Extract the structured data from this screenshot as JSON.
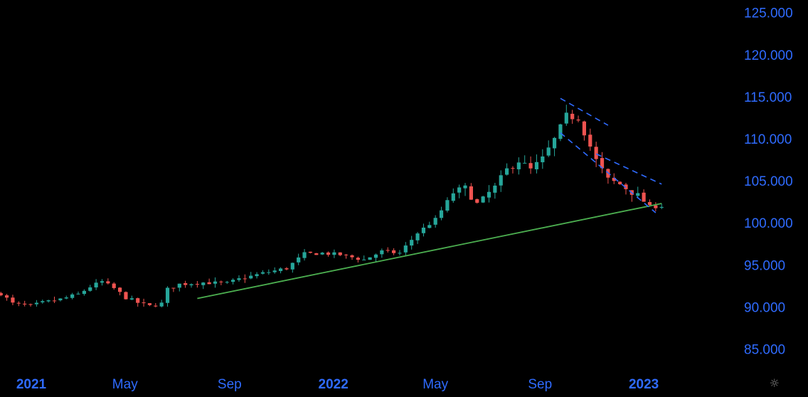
{
  "chart_data": {
    "type": "candlestick",
    "interval": "weekly",
    "colors": {
      "up": "#26a69a",
      "down": "#ef5350",
      "axis_text": "#2f6bff",
      "trend_support": "#4caf50",
      "channel": "#2f6bff"
    },
    "ylim": [
      82.5,
      126.5
    ],
    "y_ticks": [
      "85.000",
      "90.000",
      "95.000",
      "100.000",
      "105.000",
      "110.000",
      "115.000",
      "120.000",
      "125.000"
    ],
    "x_ticks": [
      {
        "label": "2021",
        "date": "2021-01-01",
        "major": true
      },
      {
        "label": "May",
        "date": "2021-05-01",
        "major": false
      },
      {
        "label": "Sep",
        "date": "2021-09-01",
        "major": false
      },
      {
        "label": "2022",
        "date": "2022-01-01",
        "major": true
      },
      {
        "label": "May",
        "date": "2022-05-01",
        "major": false
      },
      {
        "label": "Sep",
        "date": "2022-09-01",
        "major": false
      },
      {
        "label": "2023",
        "date": "2023-01-01",
        "major": true
      }
    ],
    "close_path": [
      [
        "2020-12-06",
        91.6
      ],
      [
        "2020-12-20",
        90.4
      ],
      [
        "2021-01-10",
        90.1
      ],
      [
        "2021-01-24",
        90.5
      ],
      [
        "2021-02-14",
        90.9
      ],
      [
        "2021-03-07",
        91.5
      ],
      [
        "2021-03-21",
        92.4
      ],
      [
        "2021-04-04",
        93.0
      ],
      [
        "2021-04-18",
        92.2
      ],
      [
        "2021-05-02",
        91.1
      ],
      [
        "2021-05-16",
        90.5
      ],
      [
        "2021-05-30",
        90.1
      ],
      [
        "2021-06-13",
        90.4
      ],
      [
        "2021-06-20",
        92.1
      ],
      [
        "2021-07-04",
        92.7
      ],
      [
        "2021-08-01",
        92.9
      ],
      [
        "2021-08-29",
        92.8
      ],
      [
        "2021-09-12",
        93.3
      ],
      [
        "2021-10-10",
        94.0
      ],
      [
        "2021-11-07",
        94.6
      ],
      [
        "2021-11-28",
        96.3
      ],
      [
        "2021-12-19",
        96.4
      ],
      [
        "2022-01-09",
        96.2
      ],
      [
        "2022-02-06",
        95.6
      ],
      [
        "2022-02-27",
        96.6
      ],
      [
        "2022-03-20",
        96.4
      ],
      [
        "2022-04-10",
        98.8
      ],
      [
        "2022-05-01",
        100.4
      ],
      [
        "2022-05-22",
        103.6
      ],
      [
        "2022-06-05",
        104.1
      ],
      [
        "2022-06-19",
        102.3
      ],
      [
        "2022-07-10",
        104.2
      ],
      [
        "2022-07-24",
        106.3
      ],
      [
        "2022-08-07",
        107.4
      ],
      [
        "2022-08-21",
        106.3
      ],
      [
        "2022-09-04",
        107.6
      ],
      [
        "2022-09-18",
        109.9
      ],
      [
        "2022-10-02",
        112.7
      ],
      [
        "2022-10-16",
        112.5
      ],
      [
        "2022-11-06",
        107.4
      ],
      [
        "2022-11-20",
        105.1
      ],
      [
        "2022-12-04",
        104.6
      ],
      [
        "2022-12-25",
        103.2
      ],
      [
        "2023-01-08",
        101.9
      ],
      [
        "2023-01-22",
        102.0
      ]
    ],
    "annotations": {
      "support_line": {
        "from": [
          "2021-07-25",
          91.0
        ],
        "to": [
          "2023-01-22",
          102.3
        ]
      },
      "channel_upper": {
        "from": [
          "2022-09-25",
          114.8
        ],
        "to": [
          "2022-11-20",
          111.6
        ]
      },
      "channel_upper2": {
        "from": [
          "2022-11-06",
          108.2
        ],
        "to": [
          "2023-01-22",
          104.6
        ]
      },
      "channel_lower": {
        "from": [
          "2022-09-25",
          110.7
        ],
        "to": [
          "2023-01-15",
          101.2
        ]
      }
    }
  },
  "settings_icon": "sun-gear-icon",
  "settings_glyph": "☼"
}
